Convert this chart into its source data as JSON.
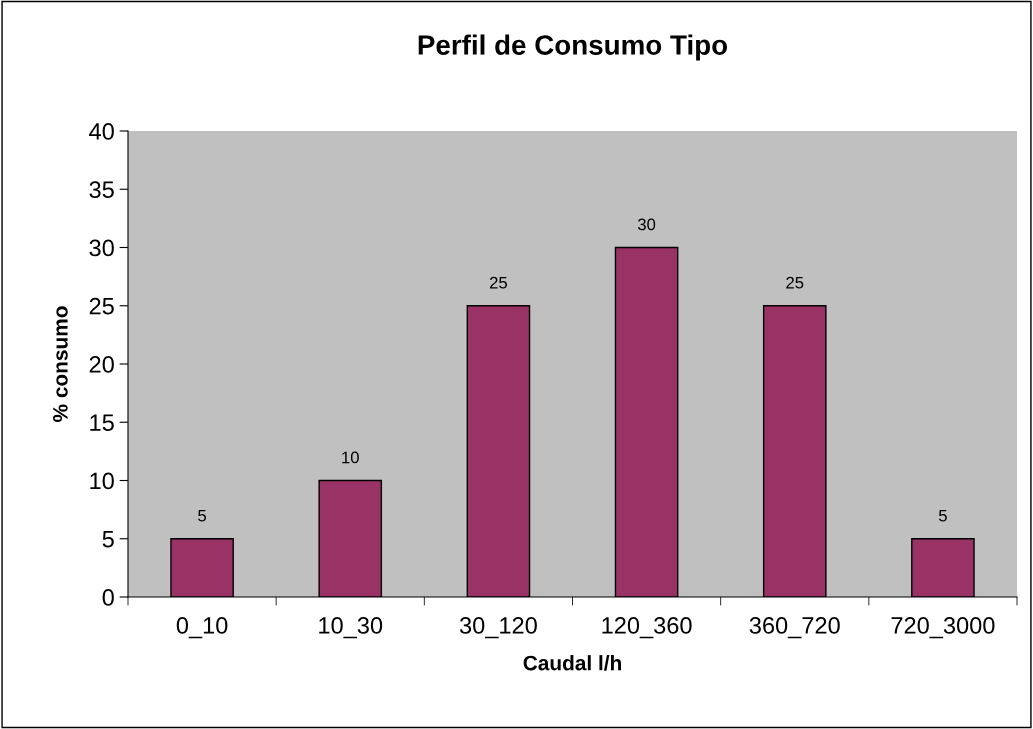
{
  "chart_data": {
    "type": "bar",
    "title": "Perfil de Consumo Tipo",
    "xlabel": "Caudal l/h",
    "ylabel": "% consumo",
    "categories": [
      "0_10",
      "10_30",
      "30_120",
      "120_360",
      "360_720",
      "720_3000"
    ],
    "values": [
      5,
      10,
      25,
      30,
      25,
      5
    ],
    "color": "#993366",
    "ylim": [
      0,
      40
    ],
    "yticks": [
      0,
      5,
      10,
      15,
      20,
      25,
      30,
      35,
      40
    ],
    "grid": false,
    "data_labels": true,
    "legend": false
  }
}
